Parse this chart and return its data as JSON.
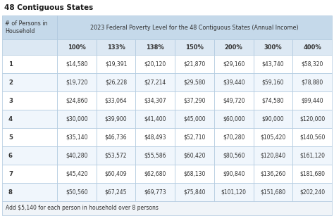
{
  "title": "48 Contiguous States",
  "header_col": "# of Persons in\nHousehold",
  "header_span": "2023 Federal Poverty Level for the 48 Contiguous States (Annual Income)",
  "col_headers": [
    "100%",
    "133%",
    "138%",
    "150%",
    "200%",
    "300%",
    "400%"
  ],
  "row_labels": [
    "1",
    "2",
    "3",
    "4",
    "5",
    "6",
    "7",
    "8"
  ],
  "table_data": [
    [
      "$14,580",
      "$19,391",
      "$20,120",
      "$21,870",
      "$29,160",
      "$43,740",
      "$58,320"
    ],
    [
      "$19,720",
      "$26,228",
      "$27,214",
      "$29,580",
      "$39,440",
      "$59,160",
      "$78,880"
    ],
    [
      "$24,860",
      "$33,064",
      "$34,307",
      "$37,290",
      "$49,720",
      "$74,580",
      "$99,440"
    ],
    [
      "$30,000",
      "$39,900",
      "$41,400",
      "$45,000",
      "$60,000",
      "$90,000",
      "$120,000"
    ],
    [
      "$35,140",
      "$46,736",
      "$48,493",
      "$52,710",
      "$70,280",
      "$105,420",
      "$140,560"
    ],
    [
      "$40,280",
      "$53,572",
      "$55,586",
      "$60,420",
      "$80,560",
      "$120,840",
      "$161,120"
    ],
    [
      "$45,420",
      "$60,409",
      "$62,680",
      "$68,130",
      "$90,840",
      "$136,260",
      "$181,680"
    ],
    [
      "$50,560",
      "$67,245",
      "$69,773",
      "$75,840",
      "$101,120",
      "$151,680",
      "$202,240"
    ]
  ],
  "footer": "Add $5,140 for each person in household over 8 persons",
  "header_bg": "#c5d9ea",
  "subheader_bg": "#dce8f3",
  "row_bg_odd": "#ffffff",
  "row_bg_even": "#f0f6fc",
  "footer_bg": "#f0f4f8",
  "border_color": "#aec8de",
  "title_color": "#1a1a1a",
  "text_color": "#333333",
  "header_text_color": "#333333"
}
